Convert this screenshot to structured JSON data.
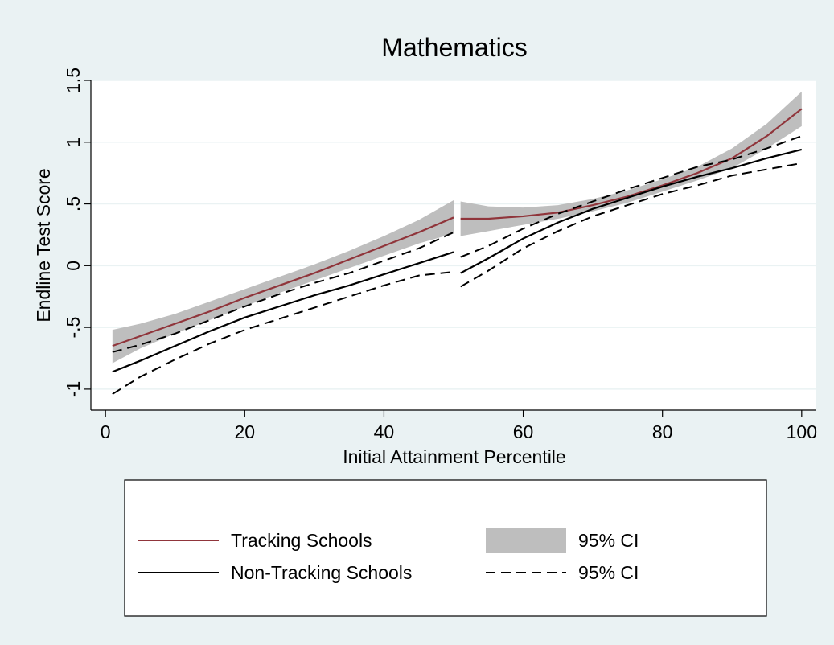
{
  "chart_data": {
    "type": "line",
    "title": "Mathematics",
    "x_label": "Initial Attainment Percentile",
    "y_label": "Endline Test Score",
    "x": [
      1,
      5,
      10,
      15,
      20,
      25,
      30,
      35,
      40,
      45,
      50,
      null,
      51,
      55,
      60,
      65,
      70,
      75,
      80,
      85,
      90,
      95,
      100
    ],
    "series": [
      {
        "name": "Tracking Schools",
        "kind": "line",
        "color": "#90353b",
        "values": [
          -0.65,
          -0.57,
          -0.47,
          -0.37,
          -0.26,
          -0.16,
          -0.06,
          0.05,
          0.16,
          0.27,
          0.39,
          null,
          0.38,
          0.38,
          0.4,
          0.43,
          0.49,
          0.56,
          0.65,
          0.75,
          0.87,
          1.05,
          1.27
        ]
      },
      {
        "name": "95% CI",
        "kind": "band",
        "color": "#bebebe",
        "lower": [
          -0.79,
          -0.67,
          -0.55,
          -0.44,
          -0.33,
          -0.22,
          -0.12,
          -0.02,
          0.08,
          0.18,
          0.26,
          null,
          0.24,
          0.28,
          0.33,
          0.38,
          0.44,
          0.51,
          0.6,
          0.69,
          0.79,
          0.95,
          1.13
        ],
        "upper": [
          -0.52,
          -0.47,
          -0.39,
          -0.29,
          -0.19,
          -0.09,
          0.01,
          0.12,
          0.24,
          0.37,
          0.53,
          null,
          0.52,
          0.48,
          0.47,
          0.49,
          0.54,
          0.61,
          0.7,
          0.8,
          0.95,
          1.15,
          1.41
        ]
      },
      {
        "name": "Non-Tracking Schools",
        "kind": "line",
        "color": "#000000",
        "values": [
          -0.86,
          -0.77,
          -0.65,
          -0.53,
          -0.42,
          -0.33,
          -0.24,
          -0.16,
          -0.07,
          0.02,
          0.11,
          null,
          -0.06,
          0.06,
          0.22,
          0.35,
          0.46,
          0.55,
          0.64,
          0.72,
          0.79,
          0.87,
          0.94
        ]
      },
      {
        "name": "95% CI",
        "kind": "dashed-bounds",
        "color": "#000000",
        "lower": [
          -1.04,
          -0.9,
          -0.76,
          -0.63,
          -0.52,
          -0.43,
          -0.34,
          -0.25,
          -0.16,
          -0.08,
          -0.05,
          null,
          -0.17,
          -0.04,
          0.14,
          0.28,
          0.4,
          0.49,
          0.58,
          0.65,
          0.73,
          0.78,
          0.83
        ],
        "upper": [
          -0.7,
          -0.64,
          -0.55,
          -0.44,
          -0.33,
          -0.23,
          -0.14,
          -0.06,
          0.04,
          0.14,
          0.27,
          null,
          0.07,
          0.16,
          0.3,
          0.42,
          0.52,
          0.62,
          0.71,
          0.8,
          0.86,
          0.95,
          1.05
        ]
      }
    ],
    "xlim": [
      -2.1,
      102.1
    ],
    "xticks": [
      0,
      20,
      40,
      60,
      80,
      100
    ],
    "ylim": [
      -1.17,
      1.5
    ],
    "yticks": [
      1.5,
      1,
      {
        "value": 0.5,
        "label": ".5"
      },
      0,
      {
        "value": -0.5,
        "label": "-.5"
      },
      -1
    ],
    "grid": true
  }
}
